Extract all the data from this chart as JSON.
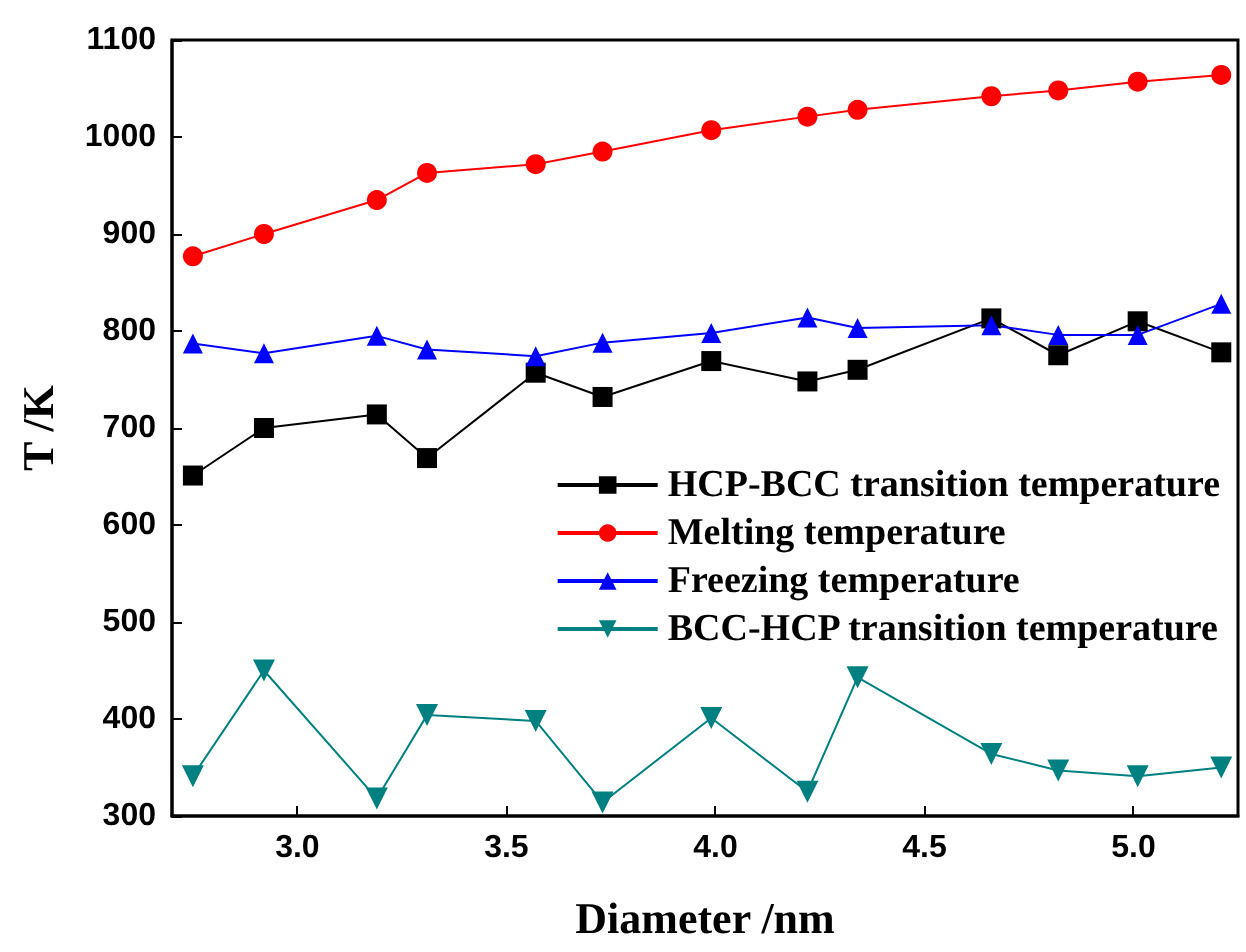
{
  "chart_data": {
    "type": "line",
    "xlabel": "Diameter /nm",
    "ylabel": "T /K",
    "x": [
      2.75,
      2.92,
      3.19,
      3.31,
      3.57,
      3.73,
      3.99,
      4.22,
      4.34,
      4.66,
      4.82,
      5.01,
      5.21
    ],
    "series": [
      {
        "name": "HCP-BCC transition temperature",
        "color": "#000000",
        "marker": "square",
        "values": [
          651,
          700,
          714,
          669,
          757,
          732,
          769,
          748,
          760,
          813,
          775,
          810,
          778
        ]
      },
      {
        "name": "Melting temperature",
        "color": "#ff0000",
        "marker": "circle",
        "values": [
          877,
          900,
          935,
          963,
          972,
          985,
          1007,
          1021,
          1028,
          1042,
          1048,
          1057,
          1064
        ]
      },
      {
        "name": "Freezing temperature",
        "color": "#0000ff",
        "marker": "triangle",
        "values": [
          787,
          777,
          795,
          781,
          774,
          788,
          798,
          814,
          803,
          806,
          796,
          796,
          828
        ]
      },
      {
        "name": "BCC-HCP transition temperature",
        "color": "#008080",
        "marker": "triangle-down",
        "values": [
          341,
          450,
          318,
          404,
          398,
          314,
          401,
          325,
          443,
          364,
          347,
          341,
          350
        ]
      }
    ],
    "xlim": [
      2.7,
      5.25
    ],
    "xticks": [
      {
        "value": 3,
        "label": "3.0"
      },
      3.5,
      {
        "value": 4,
        "label": "4.0"
      },
      4.5,
      {
        "value": 5,
        "label": "5.0"
      }
    ],
    "ylim": [
      300,
      1100
    ],
    "yticks": [
      300,
      400,
      500,
      600,
      700,
      800,
      900,
      1000,
      1100
    ],
    "legend": "right",
    "grid": false
  }
}
